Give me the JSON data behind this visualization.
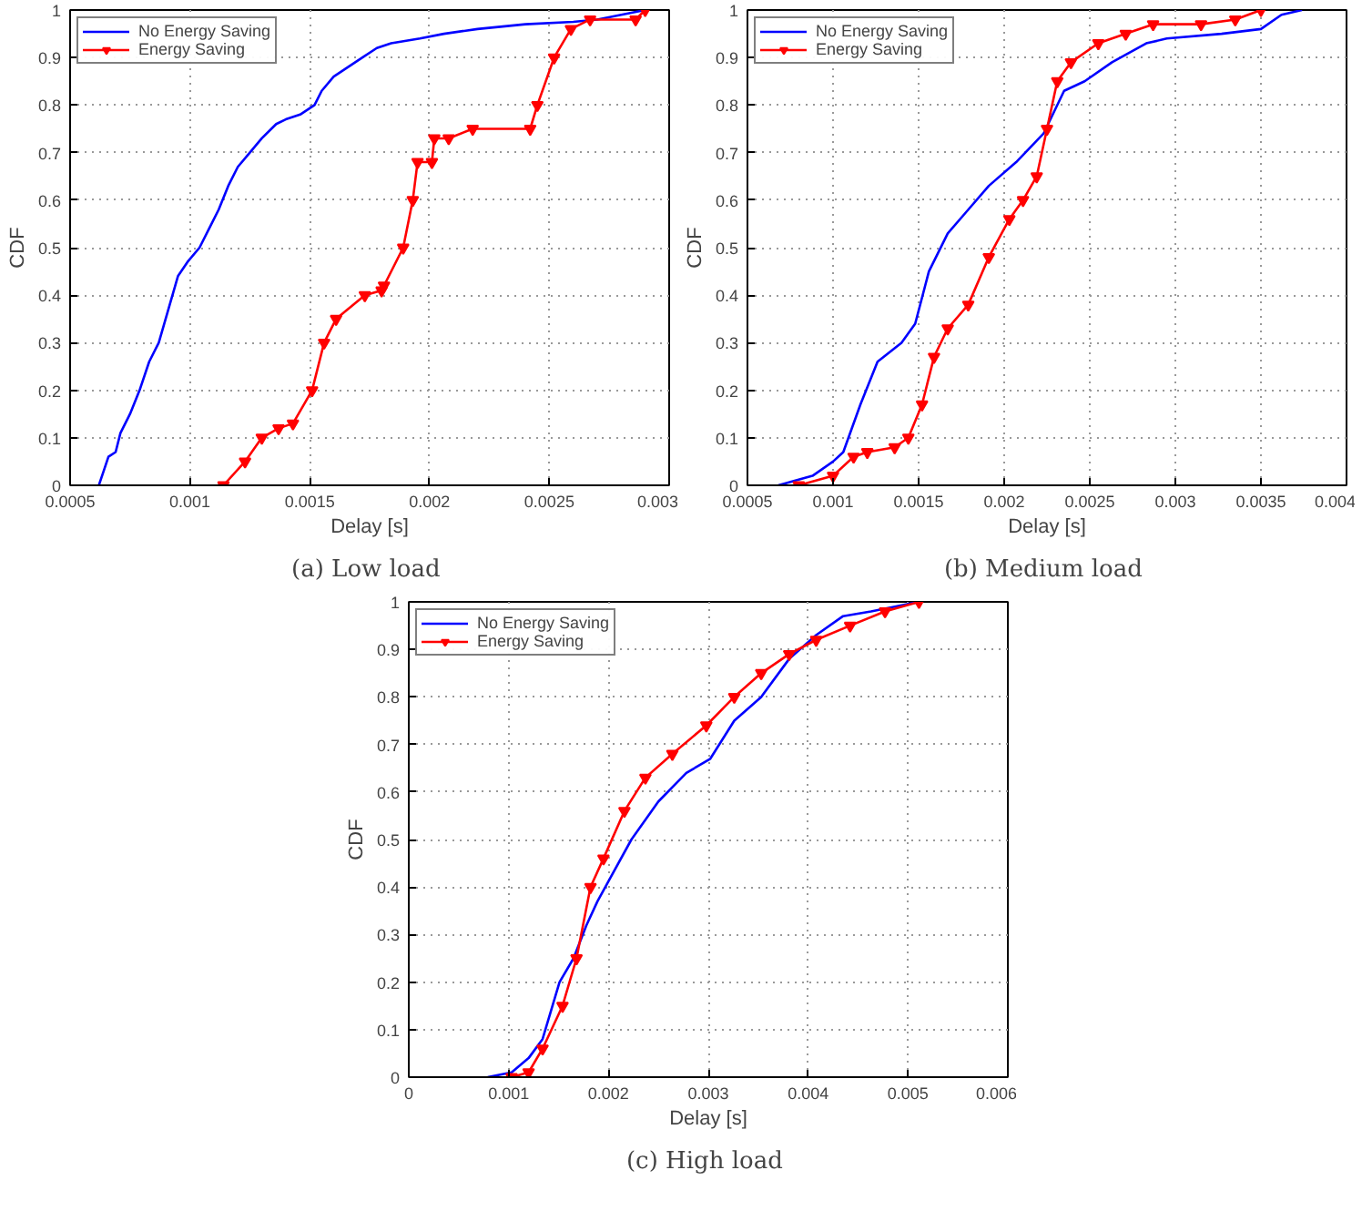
{
  "chart_data": [
    {
      "type": "line",
      "title": "(a)  Low load",
      "xlabel": "Delay [s]",
      "ylabel": "CDF",
      "xlim": [
        0.0005,
        0.003
      ],
      "xticks": [
        0.0005,
        0.001,
        0.0015,
        0.002,
        0.0025,
        0.003
      ],
      "ylim": [
        0,
        1
      ],
      "yticks": [
        0,
        0.1,
        0.2,
        0.3,
        0.4,
        0.5,
        0.6,
        0.7,
        0.8,
        0.9,
        1
      ],
      "grid": true,
      "legend": "top left",
      "line_style": "solid",
      "series": [
        {
          "name": "No Energy Saving",
          "color": "#0000ff",
          "marker": "none",
          "x": [
            0.00062,
            0.00064,
            0.00066,
            0.00069,
            0.00071,
            0.00075,
            0.00079,
            0.00083,
            0.00087,
            0.00091,
            0.00095,
            0.00099,
            0.00104,
            0.00108,
            0.00112,
            0.00116,
            0.0012,
            0.00125,
            0.0013,
            0.00136,
            0.0014,
            0.00146,
            0.00152,
            0.00155,
            0.0016,
            0.00166,
            0.00172,
            0.00178,
            0.00184,
            0.00196,
            0.00206,
            0.0022,
            0.0024,
            0.0026,
            0.0027,
            0.0028,
            0.0029
          ],
          "values": [
            0,
            0.03,
            0.06,
            0.07,
            0.11,
            0.15,
            0.2,
            0.26,
            0.3,
            0.37,
            0.44,
            0.47,
            0.5,
            0.54,
            0.58,
            0.63,
            0.67,
            0.7,
            0.73,
            0.76,
            0.77,
            0.78,
            0.8,
            0.83,
            0.86,
            0.88,
            0.9,
            0.92,
            0.93,
            0.94,
            0.95,
            0.96,
            0.97,
            0.975,
            0.98,
            0.99,
            1.0
          ]
        },
        {
          "name": "Energy Saving",
          "color": "#ff0000",
          "marker": "triangle",
          "x": [
            0.00114,
            0.00123,
            0.0013,
            0.00137,
            0.00143,
            0.00151,
            0.00156,
            0.00161,
            0.00173,
            0.0018,
            0.00181,
            0.00189,
            0.00193,
            0.00195,
            0.00201,
            0.00202,
            0.00208,
            0.00218,
            0.00242,
            0.00245,
            0.00252,
            0.00259,
            0.00267,
            0.00286,
            0.0029
          ],
          "values": [
            0,
            0.05,
            0.1,
            0.12,
            0.13,
            0.2,
            0.3,
            0.35,
            0.4,
            0.41,
            0.42,
            0.5,
            0.6,
            0.68,
            0.68,
            0.73,
            0.73,
            0.75,
            0.75,
            0.8,
            0.9,
            0.96,
            0.98,
            0.98,
            1.0
          ]
        }
      ]
    },
    {
      "type": "line",
      "title": "(b)  Medium load",
      "xlabel": "Delay [s]",
      "ylabel": "CDF",
      "xlim": [
        0.0005,
        0.004
      ],
      "xticks": [
        0.0005,
        0.001,
        0.0015,
        0.002,
        0.0025,
        0.003,
        0.0035,
        0.004
      ],
      "ylim": [
        0,
        1
      ],
      "yticks": [
        0,
        0.1,
        0.2,
        0.3,
        0.4,
        0.5,
        0.6,
        0.7,
        0.8,
        0.9,
        1
      ],
      "grid": true,
      "legend": "top left",
      "line_style": "solid",
      "series": [
        {
          "name": "No Energy Saving",
          "color": "#0000ff",
          "marker": "none",
          "x": [
            0.00068,
            0.00088,
            0.001,
            0.00106,
            0.00116,
            0.00126,
            0.0014,
            0.00148,
            0.00156,
            0.00167,
            0.00179,
            0.00191,
            0.00207,
            0.00223,
            0.00235,
            0.00247,
            0.00263,
            0.00283,
            0.00295,
            0.00327,
            0.0035,
            0.00362,
            0.00374
          ],
          "values": [
            0,
            0.02,
            0.05,
            0.07,
            0.17,
            0.26,
            0.3,
            0.34,
            0.45,
            0.53,
            0.58,
            0.63,
            0.68,
            0.74,
            0.83,
            0.85,
            0.89,
            0.93,
            0.94,
            0.95,
            0.96,
            0.99,
            1.0
          ]
        },
        {
          "name": "Energy Saving",
          "color": "#ff0000",
          "marker": "triangle",
          "x": [
            0.0008,
            0.001,
            0.00112,
            0.0012,
            0.00136,
            0.00144,
            0.00152,
            0.00159,
            0.00167,
            0.00179,
            0.00191,
            0.00203,
            0.00211,
            0.00219,
            0.00225,
            0.00231,
            0.00239,
            0.00255,
            0.00271,
            0.00287,
            0.00315,
            0.00335,
            0.0035
          ],
          "values": [
            0,
            0.02,
            0.06,
            0.07,
            0.08,
            0.1,
            0.17,
            0.27,
            0.33,
            0.38,
            0.48,
            0.56,
            0.6,
            0.65,
            0.75,
            0.85,
            0.89,
            0.93,
            0.95,
            0.97,
            0.97,
            0.98,
            1.0
          ]
        }
      ]
    },
    {
      "type": "line",
      "title": "(c)  High load",
      "xlabel": "Delay [s]",
      "ylabel": "CDF",
      "xlim": [
        0,
        0.006
      ],
      "xticks": [
        0,
        0.001,
        0.002,
        0.003,
        0.004,
        0.005,
        0.006
      ],
      "ylim": [
        0,
        1
      ],
      "yticks": [
        0,
        0.1,
        0.2,
        0.3,
        0.4,
        0.5,
        0.6,
        0.7,
        0.8,
        0.9,
        1
      ],
      "grid": true,
      "legend": "top left",
      "line_style": "solid",
      "series": [
        {
          "name": "No Energy Saving",
          "color": "#0000ff",
          "marker": "none",
          "x": [
            0.00079,
            0.00103,
            0.0012,
            0.00134,
            0.00151,
            0.00165,
            0.00178,
            0.00189,
            0.00202,
            0.00223,
            0.0025,
            0.00278,
            0.00302,
            0.00326,
            0.00353,
            0.00381,
            0.00408,
            0.00435,
            0.00463,
            0.00511
          ],
          "values": [
            0,
            0.01,
            0.04,
            0.08,
            0.2,
            0.25,
            0.32,
            0.37,
            0.42,
            0.5,
            0.58,
            0.64,
            0.67,
            0.75,
            0.8,
            0.88,
            0.93,
            0.97,
            0.98,
            1.0
          ]
        },
        {
          "name": "Energy Saving",
          "color": "#ff0000",
          "marker": "triangle",
          "x": [
            0.00103,
            0.0012,
            0.00134,
            0.00154,
            0.00168,
            0.00182,
            0.00195,
            0.00216,
            0.00237,
            0.00264,
            0.00298,
            0.00326,
            0.00353,
            0.00381,
            0.00408,
            0.00442,
            0.00477,
            0.00511
          ],
          "values": [
            0,
            0.01,
            0.06,
            0.15,
            0.25,
            0.4,
            0.46,
            0.56,
            0.63,
            0.68,
            0.74,
            0.8,
            0.85,
            0.89,
            0.92,
            0.95,
            0.98,
            1.0
          ]
        }
      ]
    }
  ]
}
